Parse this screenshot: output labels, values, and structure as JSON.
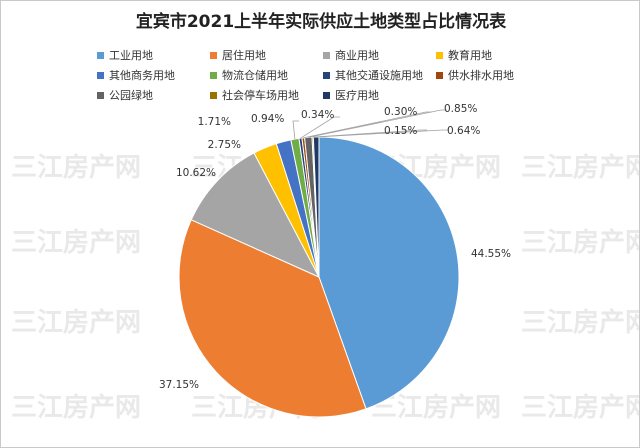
{
  "chart_data": {
    "type": "pie",
    "title": "宜宾市2021上半年实际供应土地类型占比情况表",
    "watermark": "三江房产网",
    "categories": [
      "工业用地",
      "居住用地",
      "商业用地",
      "教育用地",
      "其他商务用地",
      "物流仓储用地",
      "其他交通设施用地",
      "供水排水用地",
      "公园绿地",
      "社会停车场用地",
      "医疗用地"
    ],
    "values": [
      44.55,
      37.15,
      10.62,
      2.75,
      1.71,
      0.94,
      0.34,
      0.3,
      0.85,
      0.15,
      0.64
    ],
    "data_labels": [
      "44.55%",
      "37.15%",
      "10.62%",
      "2.75%",
      "1.71%",
      "0.94%",
      "0.34%",
      "0.30%",
      "0.85%",
      "0.15%",
      "0.64%"
    ],
    "colors": [
      "#5b9bd5",
      "#ed7d31",
      "#a5a5a5",
      "#ffc000",
      "#4472c4",
      "#70ad47",
      "#264478",
      "#9e480e",
      "#636363",
      "#997300",
      "#1f3864"
    ],
    "legend_placement": "top"
  }
}
